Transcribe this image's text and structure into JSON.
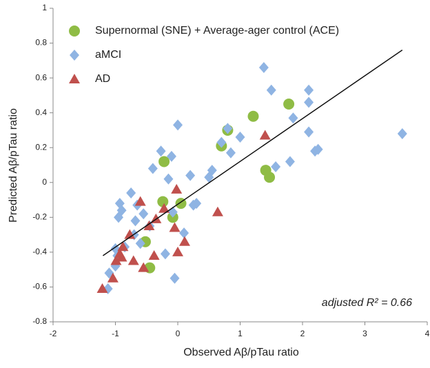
{
  "chart_data": {
    "type": "scatter",
    "xlabel": "Observed Aβ/pTau ratio",
    "ylabel": "Predicted Aβ/pTau ratio",
    "annotation": "adjusted R² = 0.66",
    "xlim": [
      -2,
      4
    ],
    "xticks": [
      -2,
      -1,
      0,
      1,
      2,
      3,
      4
    ],
    "ylim": [
      -0.8,
      1
    ],
    "yticks": [
      -0.8,
      -0.6,
      -0.4,
      -0.2,
      0,
      0.2,
      0.4,
      0.6,
      0.8,
      1
    ],
    "fit_line": {
      "x": [
        -1.2,
        3.6
      ],
      "y": [
        -0.42,
        0.76
      ],
      "color": "#111111"
    },
    "series": [
      {
        "name": "Supernormal (SNE) + Average-ager control (ACE)",
        "color": "#8fbc45",
        "marker": "circle",
        "x": [
          -0.22,
          -0.24,
          -0.08,
          0.05,
          -0.52,
          -0.45,
          0.8,
          0.7,
          1.21,
          1.78,
          1.41,
          1.47
        ],
        "values": [
          0.12,
          -0.11,
          -0.2,
          -0.12,
          -0.34,
          -0.49,
          0.3,
          0.21,
          0.38,
          0.45,
          0.07,
          0.03
        ]
      },
      {
        "name": "aMCI",
        "color": "#8fb4e3",
        "marker": "diamond",
        "x": [
          -1.12,
          -1.1,
          -1.0,
          -0.95,
          -0.93,
          -0.9,
          -0.85,
          -0.75,
          -0.7,
          -0.68,
          -0.65,
          -0.6,
          -0.55,
          -0.45,
          -0.4,
          -0.27,
          -0.2,
          -0.15,
          -0.1,
          -0.05,
          -0.08,
          0.0,
          0.1,
          0.2,
          0.25,
          0.3,
          0.5,
          0.55,
          0.7,
          0.8,
          0.85,
          1.0,
          1.38,
          1.5,
          1.57,
          1.8,
          1.85,
          2.1,
          2.1,
          2.1,
          2.2,
          2.25,
          3.6,
          -0.97,
          -1.0
        ],
        "values": [
          -0.61,
          -0.52,
          -0.48,
          -0.2,
          -0.12,
          -0.16,
          -0.37,
          -0.06,
          -0.3,
          -0.22,
          -0.13,
          -0.35,
          -0.18,
          -0.25,
          0.08,
          0.18,
          -0.41,
          0.02,
          0.15,
          -0.55,
          -0.17,
          0.33,
          -0.29,
          0.04,
          -0.13,
          -0.12,
          0.03,
          0.07,
          0.23,
          0.31,
          0.17,
          0.26,
          0.66,
          0.53,
          0.09,
          0.12,
          0.37,
          0.53,
          0.46,
          0.29,
          0.18,
          0.19,
          0.28,
          -0.42,
          -0.38
        ]
      },
      {
        "name": "AD",
        "color": "#c0504d",
        "marker": "triangle",
        "x": [
          -1.21,
          -1.04,
          -0.99,
          -0.93,
          -0.88,
          -0.77,
          -0.71,
          -0.6,
          -0.55,
          -0.46,
          -0.38,
          -0.35,
          -0.22,
          -0.05,
          -0.02,
          0.0,
          0.11,
          0.64,
          1.4,
          -0.9
        ],
        "values": [
          -0.61,
          -0.55,
          -0.45,
          -0.41,
          -0.37,
          -0.3,
          -0.45,
          -0.11,
          -0.49,
          -0.25,
          -0.42,
          -0.21,
          -0.15,
          -0.26,
          -0.04,
          -0.4,
          -0.34,
          -0.17,
          0.27,
          -0.43
        ]
      }
    ]
  }
}
